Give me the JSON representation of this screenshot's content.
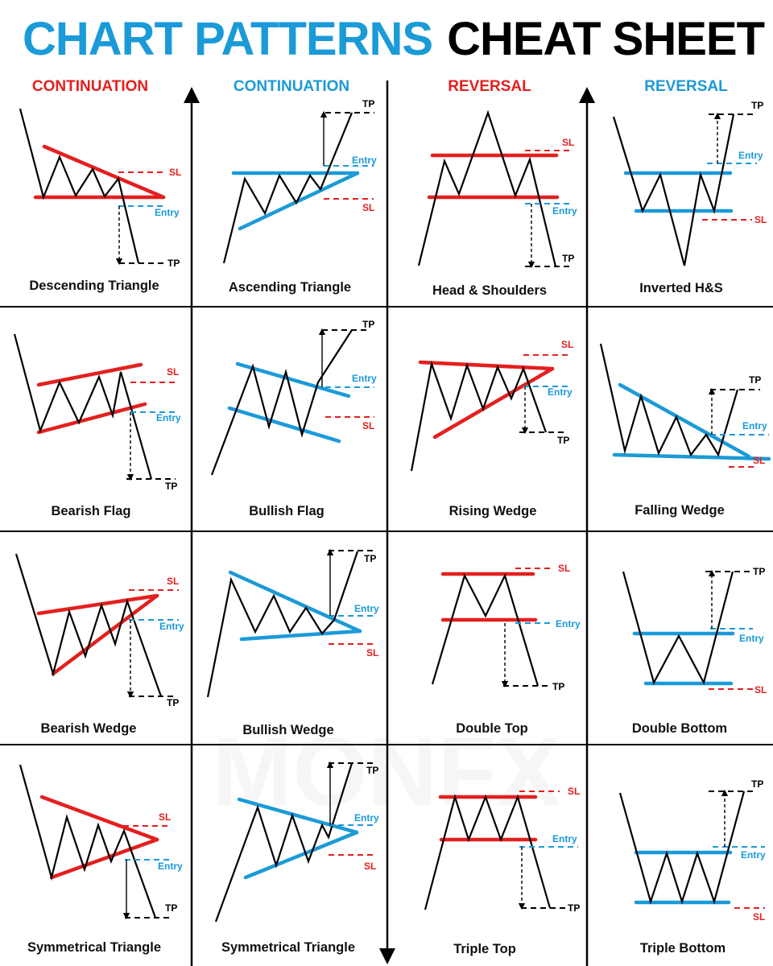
{
  "title": {
    "part1": "CHART PATTERNS",
    "part2": "CHEAT SHEET"
  },
  "colors": {
    "red": "#e3201f",
    "blue": "#1b9ad8",
    "black": "#000000"
  },
  "columns": [
    {
      "header": "CONTINUATION",
      "color": "red"
    },
    {
      "header": "CONTINUATION",
      "color": "blue"
    },
    {
      "header": "REVERSAL",
      "color": "red"
    },
    {
      "header": "REVERSAL",
      "color": "blue"
    }
  ],
  "levels": {
    "sl": "SL",
    "entry": "Entry",
    "tp": "TP"
  },
  "patterns": [
    "Descending Triangle",
    "Ascending Triangle",
    "Head & Shoulders",
    "Inverted H&S",
    "Bearish Flag",
    "Bullish Flag",
    "Rising Wedge",
    "Falling Wedge",
    "Bearish Wedge",
    "Bullish Wedge",
    "Double Top",
    "Double Bottom",
    "Symmetrical Triangle",
    "Symmetrical Triangle",
    "Triple Top",
    "Triple Bottom"
  ],
  "watermark": "MONFX"
}
